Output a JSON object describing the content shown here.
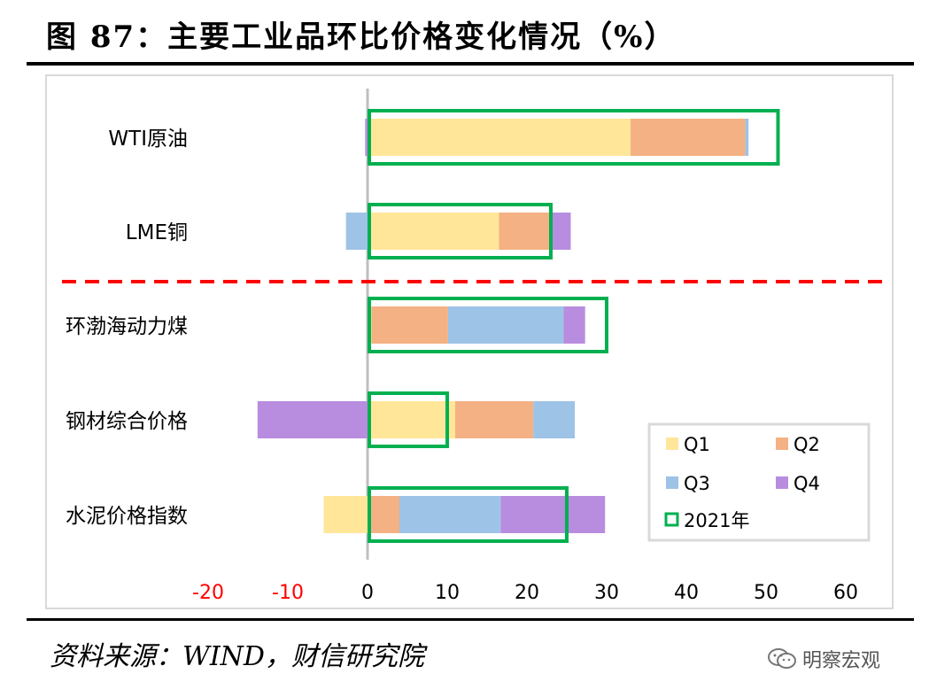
{
  "header": {
    "title": "图 87：主要工业品环比价格变化情况（%）"
  },
  "footer": {
    "source": "资料来源：WIND，财信研究院",
    "watermark": "明察宏观"
  },
  "chart_data": {
    "type": "bar",
    "orientation": "horizontal",
    "stacked": true,
    "categories": [
      "WTI原油",
      "LME铜",
      "环渤海动力煤",
      "钢材综合价格",
      "水泥价格指数"
    ],
    "series": [
      {
        "name": "Q1",
        "color": "#ffe699",
        "values": [
          33.0,
          16.5,
          0.5,
          11.0,
          -5.5
        ]
      },
      {
        "name": "Q2",
        "color": "#f4b183",
        "values": [
          14.4,
          6.5,
          9.6,
          9.8,
          4.0
        ]
      },
      {
        "name": "Q3",
        "color": "#9dc3e6",
        "values": [
          0.4,
          -2.7,
          14.5,
          5.2,
          12.7
        ]
      },
      {
        "name": "Q4",
        "color": "#b88ddf",
        "values": [
          -0.3,
          2.5,
          2.7,
          -13.8,
          13.1
        ]
      }
    ],
    "annual_2021": {
      "name": "2021年",
      "color": "#00b050",
      "values": [
        51.5,
        23.0,
        30.0,
        10.0,
        25.0
      ]
    },
    "xlim": [
      -20,
      60
    ],
    "xticks": [
      "-20",
      "-10",
      "0",
      "10",
      "20",
      "30",
      "40",
      "50",
      "60"
    ],
    "negative_tick_color": "#ff0000",
    "separator": {
      "after_category_index": 1,
      "color": "#ff0000",
      "style": "dashed"
    },
    "legend": {
      "position": "bottom-right",
      "entries": [
        "Q1",
        "Q2",
        "Q3",
        "Q4",
        "2021年"
      ]
    }
  }
}
